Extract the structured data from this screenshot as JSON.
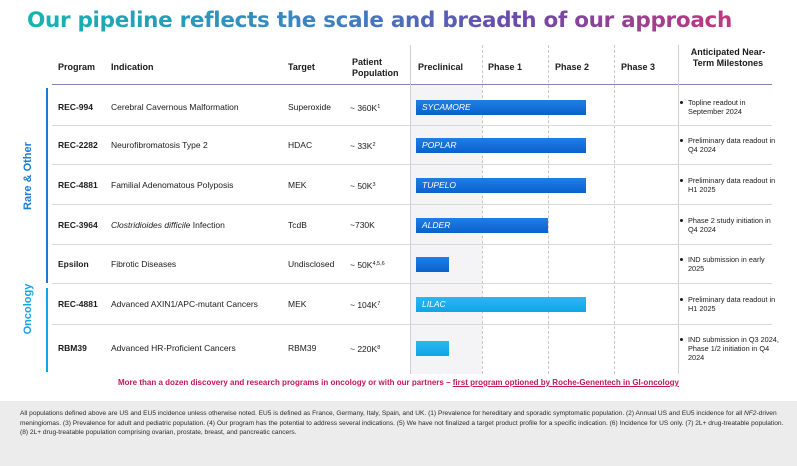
{
  "title": "Our pipeline reflects the scale and breadth of our approach",
  "headers": {
    "program": "Program",
    "indication": "Indication",
    "target": "Target",
    "patient_population": "Patient Population",
    "preclinical": "Preclinical",
    "phase1": "Phase 1",
    "phase2": "Phase 2",
    "phase3": "Phase 3",
    "milestones": "Anticipated Near-Term Milestones"
  },
  "groups": {
    "rare": "Rare & Other",
    "oncology": "Oncology"
  },
  "colors": {
    "bar_rare": "#0a62c9",
    "bar_oncology": "#12a4e6",
    "banner": "#c2185b",
    "header_rule": "#8a83b8"
  },
  "rows": [
    {
      "program": "REC-994",
      "indication": "Cerebral Cavernous Malformation",
      "target": "Superoxide",
      "population": "~ 360K",
      "sup": "1",
      "bar_label": "SYCAMORE",
      "milestone": "Topline readout in September 2024",
      "phase_progress": "Phase 2"
    },
    {
      "program": "REC-2282",
      "indication": "Neurofibromatosis Type 2",
      "target": "HDAC",
      "population": "~ 33K",
      "sup": "2",
      "bar_label": "POPLAR",
      "milestone": "Preliminary data readout in Q4 2024",
      "phase_progress": "Phase 2"
    },
    {
      "program": "REC-4881",
      "indication": "Familial Adenomatous Polyposis",
      "target": "MEK",
      "population": "~ 50K",
      "sup": "3",
      "bar_label": "TUPELO",
      "milestone": "Preliminary data readout in H1 2025",
      "phase_progress": "Phase 2"
    },
    {
      "program": "REC-3964",
      "indication_italic": "Clostridioides difficile",
      "indication_rest": " Infection",
      "target": "TcdB",
      "population": "~730K",
      "sup": "",
      "bar_label": "ALDER",
      "milestone": "Phase 2 study initiation in Q4 2024",
      "phase_progress": "Phase 1"
    },
    {
      "program": "Epsilon",
      "indication": "Fibrotic Diseases",
      "target": "Undisclosed",
      "population": "~ 50K",
      "sup": "4,5,6",
      "bar_label": "",
      "milestone": "IND submission in early 2025",
      "phase_progress": "Preclinical"
    },
    {
      "program": "REC-4881",
      "indication": "Advanced AXIN1/APC-mutant Cancers",
      "target": "MEK",
      "population": "~ 104K",
      "sup": "7",
      "bar_label": "LILAC",
      "milestone": "Preliminary data readout in H1 2025",
      "phase_progress": "Phase 2"
    },
    {
      "program": "RBM39",
      "indication": "Advanced HR-Proficient Cancers",
      "target": "RBM39",
      "population": "~ 220K",
      "sup": "8",
      "bar_label": "",
      "milestone": "IND submission in Q3 2024, Phase 1/2 initiation in Q4 2024",
      "phase_progress": "Preclinical"
    }
  ],
  "banner": {
    "text": "More than a dozen discovery and research programs in oncology or with our partners – ",
    "link": "first program optioned by Roche-Genentech in GI-oncology"
  },
  "footnote": {
    "part1": "All populations defined above are US and EU5 incidence unless otherwise noted. EU5 is defined as France, Germany, Italy, Spain, and UK. (1) Prevalence for hereditary and sporadic symptomatic population. (2) Annual US and EU5 incidence for all ",
    "italic": "NF2",
    "part2": "-driven meningiomas. (3) Prevalence for adult and pediatric population. (4) Our program has the potential to address several indications. (5) We have not finalized a target product profile for a specific indication. (6) Incidence for US only. (7) 2L+ drug-treatable population. (8) 2L+ drug-treatable population comprising ovarian, prostate, breast, and pancreatic cancers."
  }
}
